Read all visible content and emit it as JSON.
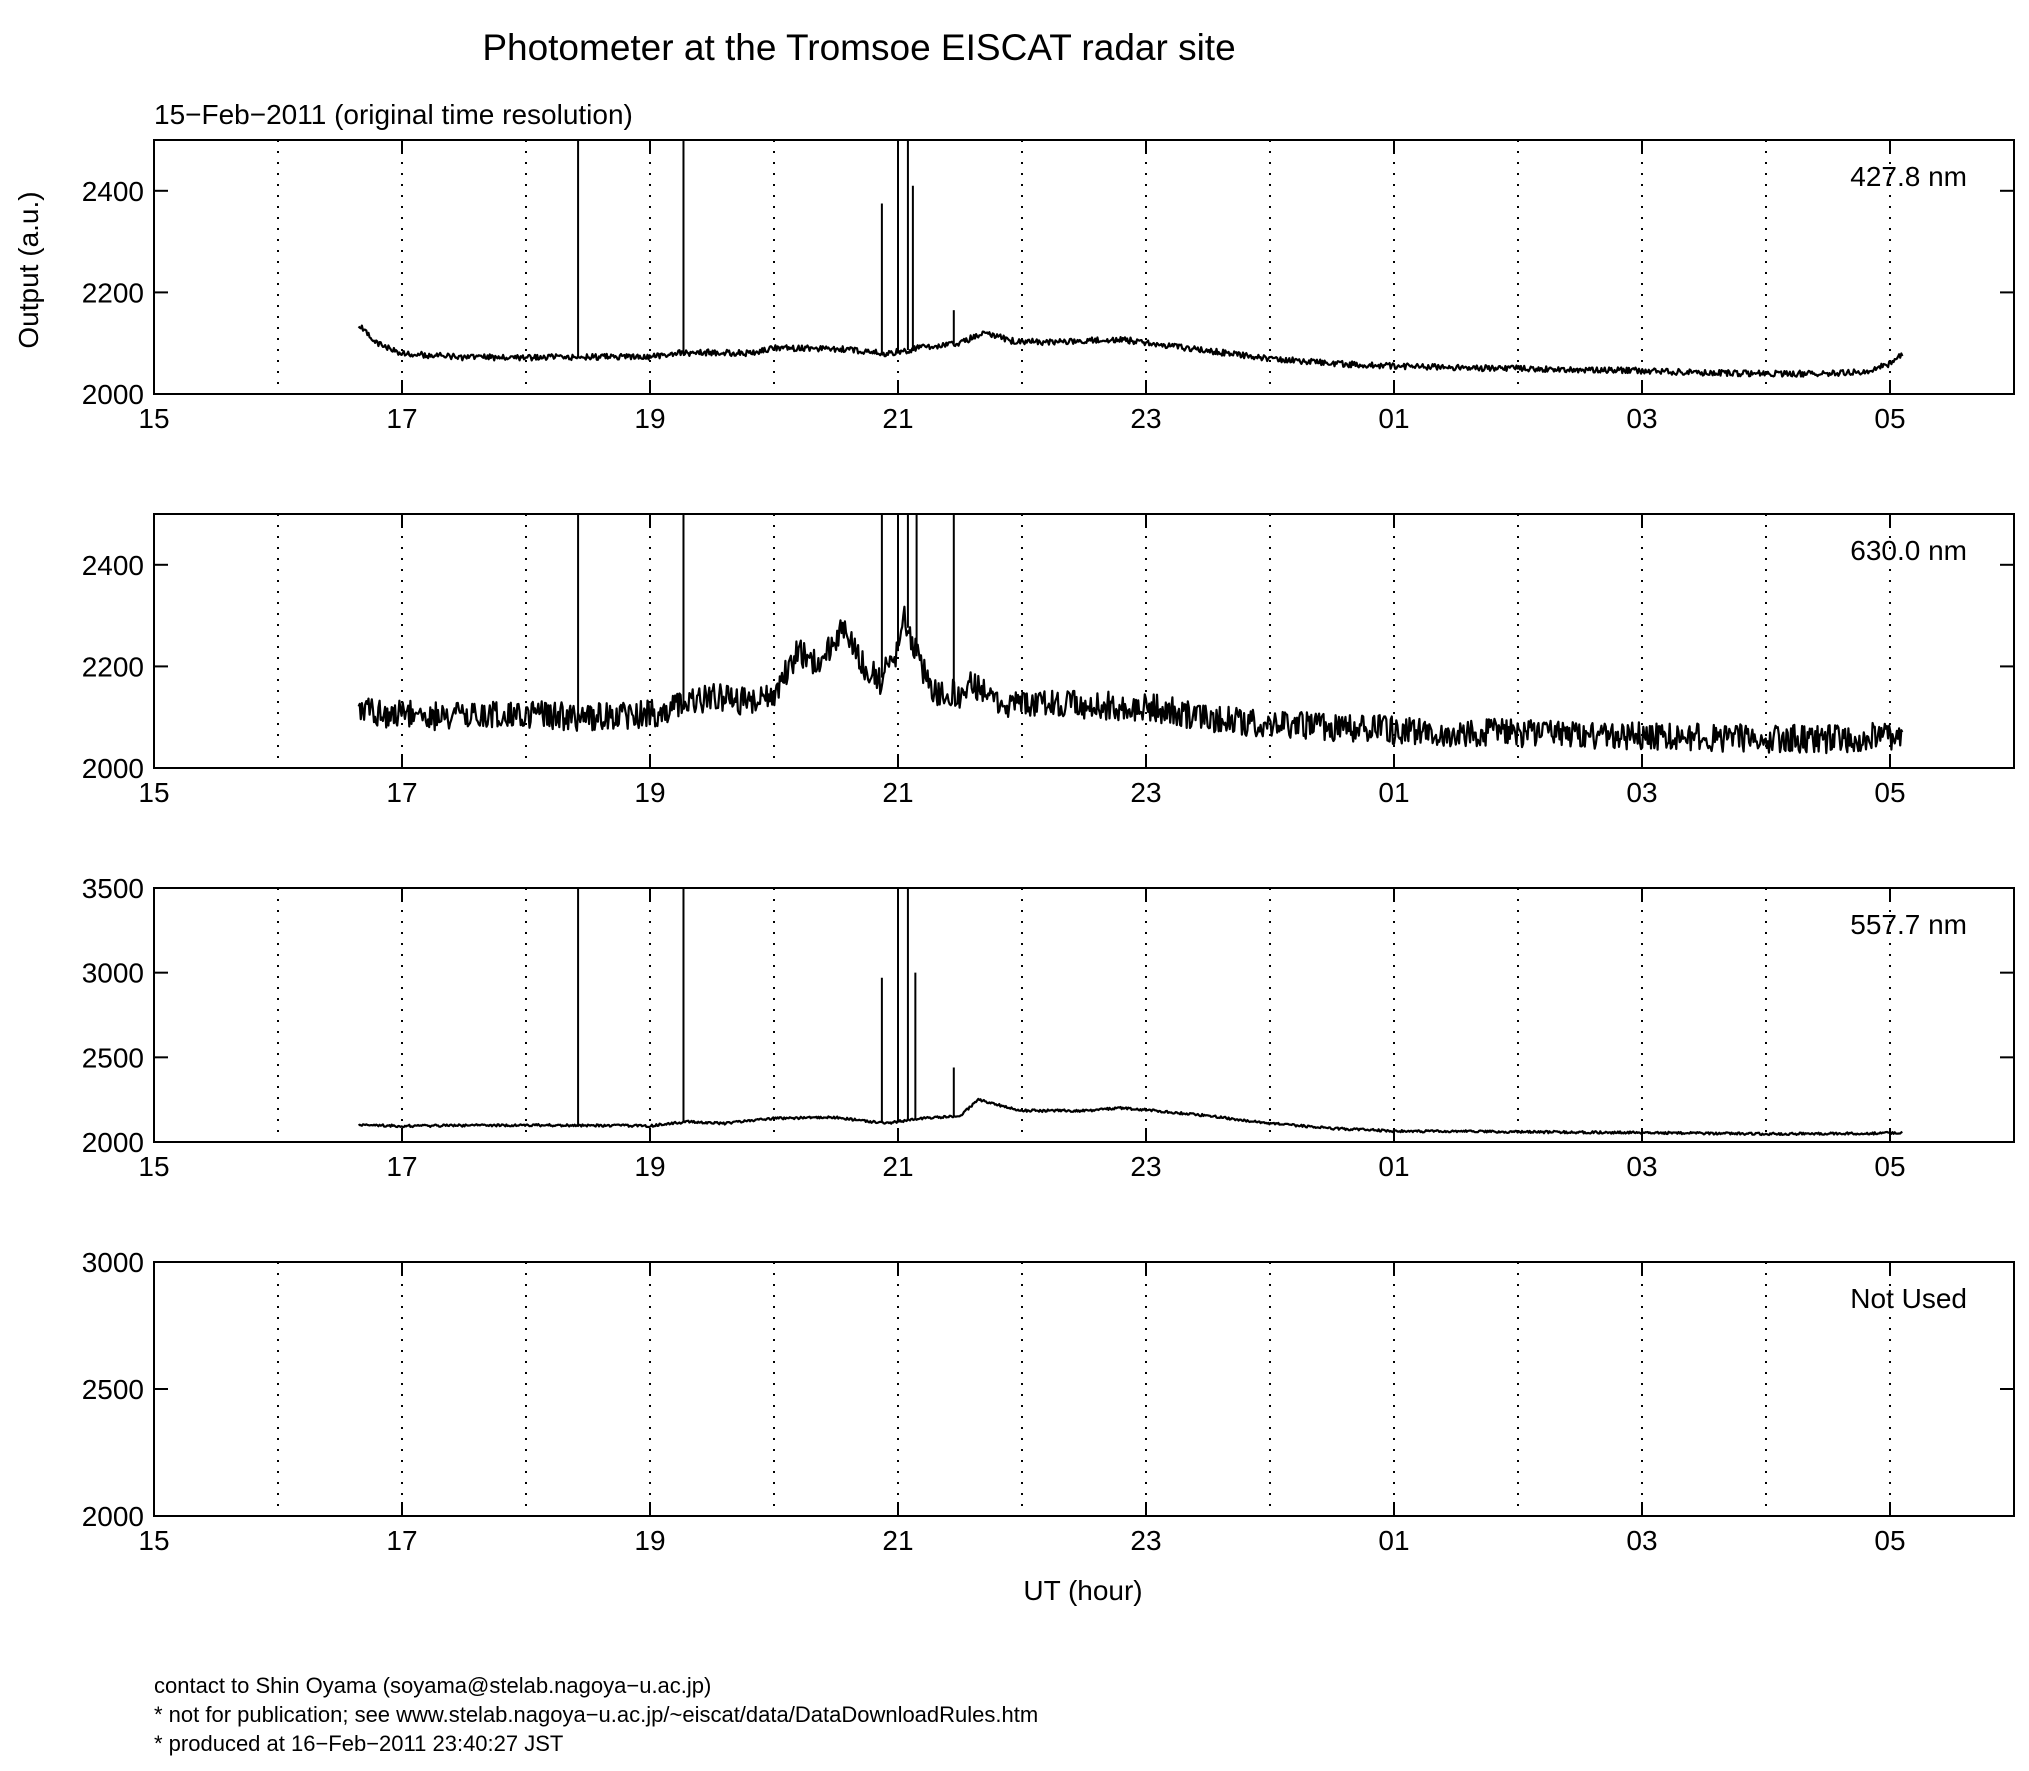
{
  "title": "Photometer at the Tromsoe EISCAT radar site",
  "subtitle": "15−Feb−2011 (original time resolution)",
  "ylabel": "Output (a.u.)",
  "xlabel": "UT (hour)",
  "x_tick_labels": [
    "15",
    "17",
    "19",
    "21",
    "23",
    "01",
    "03",
    "05"
  ],
  "footer": {
    "contact": "contact to Shin Oyama (soyama@stelab.nagoya−u.ac.jp)",
    "note": "* not for publication; see www.stelab.nagoya−u.ac.jp/~eiscat/data/DataDownloadRules.htm",
    "produced": "* produced at 16−Feb−2011 23:40:27 JST"
  },
  "chart_data": [
    {
      "type": "line",
      "label": "427.8 nm",
      "xlim": [
        15,
        30
      ],
      "ylim": [
        2000,
        2500
      ],
      "yticks": [
        2000,
        2200,
        2400
      ],
      "grid": "dotted vertical lines every hour",
      "noise": 6,
      "series": [
        {
          "x": [
            16.65,
            16.8,
            17.0,
            17.5,
            18.0,
            18.5,
            19.0,
            19.2,
            19.5,
            19.8,
            20.0,
            20.3,
            20.6,
            20.9,
            21.0,
            21.2,
            21.5,
            21.7,
            21.9,
            22.2,
            22.5,
            22.8,
            23.0,
            23.5,
            24.0,
            24.5,
            25.0,
            25.5,
            26.0,
            26.5,
            27.0,
            27.5,
            28.0,
            28.5,
            28.8,
            29.0,
            29.1
          ],
          "y": [
            2135,
            2100,
            2080,
            2072,
            2072,
            2073,
            2073,
            2080,
            2082,
            2080,
            2090,
            2090,
            2088,
            2080,
            2083,
            2092,
            2100,
            2122,
            2105,
            2102,
            2105,
            2108,
            2100,
            2085,
            2070,
            2060,
            2055,
            2052,
            2050,
            2048,
            2046,
            2042,
            2040,
            2040,
            2045,
            2060,
            2078
          ]
        }
      ],
      "spikes": [
        [
          18.42,
          2500
        ],
        [
          19.27,
          2500
        ],
        [
          20.87,
          2375
        ],
        [
          21.0,
          2500
        ],
        [
          21.08,
          2500
        ],
        [
          21.12,
          2410
        ],
        [
          21.45,
          2165
        ]
      ]
    },
    {
      "type": "line",
      "label": "630.0 nm",
      "xlim": [
        15,
        30
      ],
      "ylim": [
        2000,
        2500
      ],
      "yticks": [
        2000,
        2200,
        2400
      ],
      "grid": "dotted vertical lines every hour",
      "noise": 28,
      "series": [
        {
          "x": [
            16.65,
            17.0,
            17.5,
            18.0,
            18.5,
            19.0,
            19.3,
            19.5,
            19.8,
            20.0,
            20.2,
            20.35,
            20.5,
            20.55,
            20.7,
            20.85,
            21.0,
            21.05,
            21.15,
            21.3,
            21.5,
            21.6,
            21.8,
            22.0,
            22.5,
            23.0,
            23.5,
            24.0,
            24.5,
            25.0,
            25.5,
            26.0,
            26.5,
            27.0,
            27.5,
            28.0,
            28.5,
            29.0,
            29.1
          ],
          "y": [
            2110,
            2105,
            2100,
            2105,
            2100,
            2105,
            2125,
            2140,
            2130,
            2150,
            2230,
            2205,
            2250,
            2280,
            2210,
            2170,
            2230,
            2300,
            2220,
            2150,
            2145,
            2170,
            2130,
            2125,
            2125,
            2120,
            2100,
            2085,
            2080,
            2075,
            2070,
            2068,
            2065,
            2063,
            2060,
            2057,
            2057,
            2062,
            2070
          ]
        }
      ],
      "spikes": [
        [
          18.42,
          2500
        ],
        [
          19.27,
          2500
        ],
        [
          20.87,
          2500
        ],
        [
          21.0,
          2500
        ],
        [
          21.08,
          2500
        ],
        [
          21.15,
          2500
        ],
        [
          21.45,
          2500
        ]
      ]
    },
    {
      "type": "line",
      "label": "557.7 nm",
      "xlim": [
        15,
        30
      ],
      "ylim": [
        2000,
        3500
      ],
      "yticks": [
        2000,
        2500,
        3000,
        3500
      ],
      "grid": "dotted vertical lines every hour",
      "noise": 7,
      "series": [
        {
          "x": [
            16.65,
            17.0,
            18.0,
            19.0,
            19.3,
            19.6,
            20.0,
            20.5,
            20.9,
            21.0,
            21.2,
            21.5,
            21.65,
            21.8,
            22.0,
            22.5,
            22.8,
            23.0,
            23.5,
            24.0,
            24.5,
            25.0,
            26.0,
            27.0,
            28.0,
            28.8,
            29.1
          ],
          "y": [
            2100,
            2095,
            2100,
            2095,
            2120,
            2110,
            2140,
            2145,
            2110,
            2120,
            2140,
            2155,
            2250,
            2220,
            2185,
            2185,
            2200,
            2190,
            2155,
            2110,
            2080,
            2065,
            2060,
            2055,
            2048,
            2050,
            2055
          ]
        }
      ],
      "spikes": [
        [
          18.42,
          3500
        ],
        [
          19.27,
          3500
        ],
        [
          20.87,
          2970
        ],
        [
          21.0,
          3500
        ],
        [
          21.08,
          3500
        ],
        [
          21.14,
          3000
        ],
        [
          21.45,
          2440
        ]
      ]
    },
    {
      "type": "line",
      "label": "Not Used",
      "xlim": [
        15,
        30
      ],
      "ylim": [
        2000,
        3000
      ],
      "yticks": [
        2000,
        2500,
        3000
      ],
      "grid": "dotted vertical lines every hour",
      "series": []
    }
  ]
}
